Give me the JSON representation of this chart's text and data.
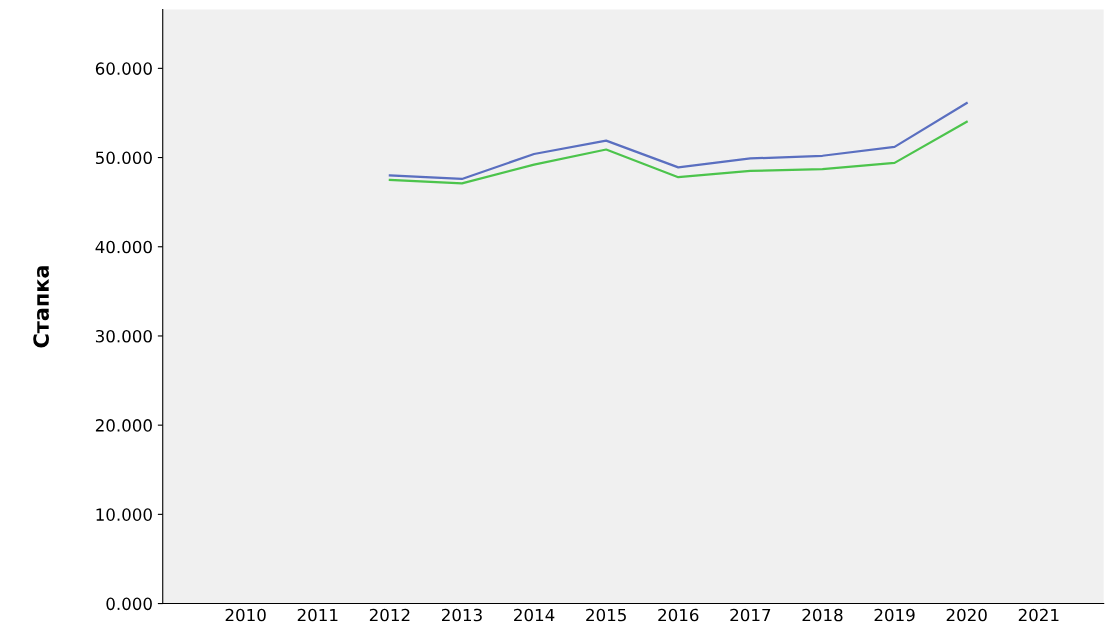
{
  "chart_data": {
    "type": "line",
    "ylabel": "Стапка",
    "categories": [
      "2010",
      "2011",
      "2012",
      "2013",
      "2014",
      "2015",
      "2016",
      "2017",
      "2018",
      "2019",
      "2020",
      "2021"
    ],
    "series": [
      {
        "color": "#5a6fc0",
        "values": [
          null,
          null,
          48.0,
          47.6,
          50.4,
          51.9,
          48.9,
          49.9,
          50.2,
          51.2,
          56.1,
          null
        ]
      },
      {
        "color": "#4cc44c",
        "values": [
          null,
          null,
          47.5,
          47.1,
          49.2,
          50.9,
          47.8,
          48.5,
          48.7,
          49.4,
          54.0,
          null
        ]
      }
    ],
    "ylim": [
      0,
      66.6
    ],
    "yticks": [
      {
        "value": 0,
        "label": "0.000"
      },
      {
        "value": 10,
        "label": "10.000"
      },
      {
        "value": 20,
        "label": "20.000"
      },
      {
        "value": 30,
        "label": "30.000"
      },
      {
        "value": 40,
        "label": "40.000"
      },
      {
        "value": 50,
        "label": "50.000"
      },
      {
        "value": 60,
        "label": "60.000"
      }
    ],
    "grid": false,
    "legend": false,
    "marker": "none",
    "line_style": "solid"
  }
}
